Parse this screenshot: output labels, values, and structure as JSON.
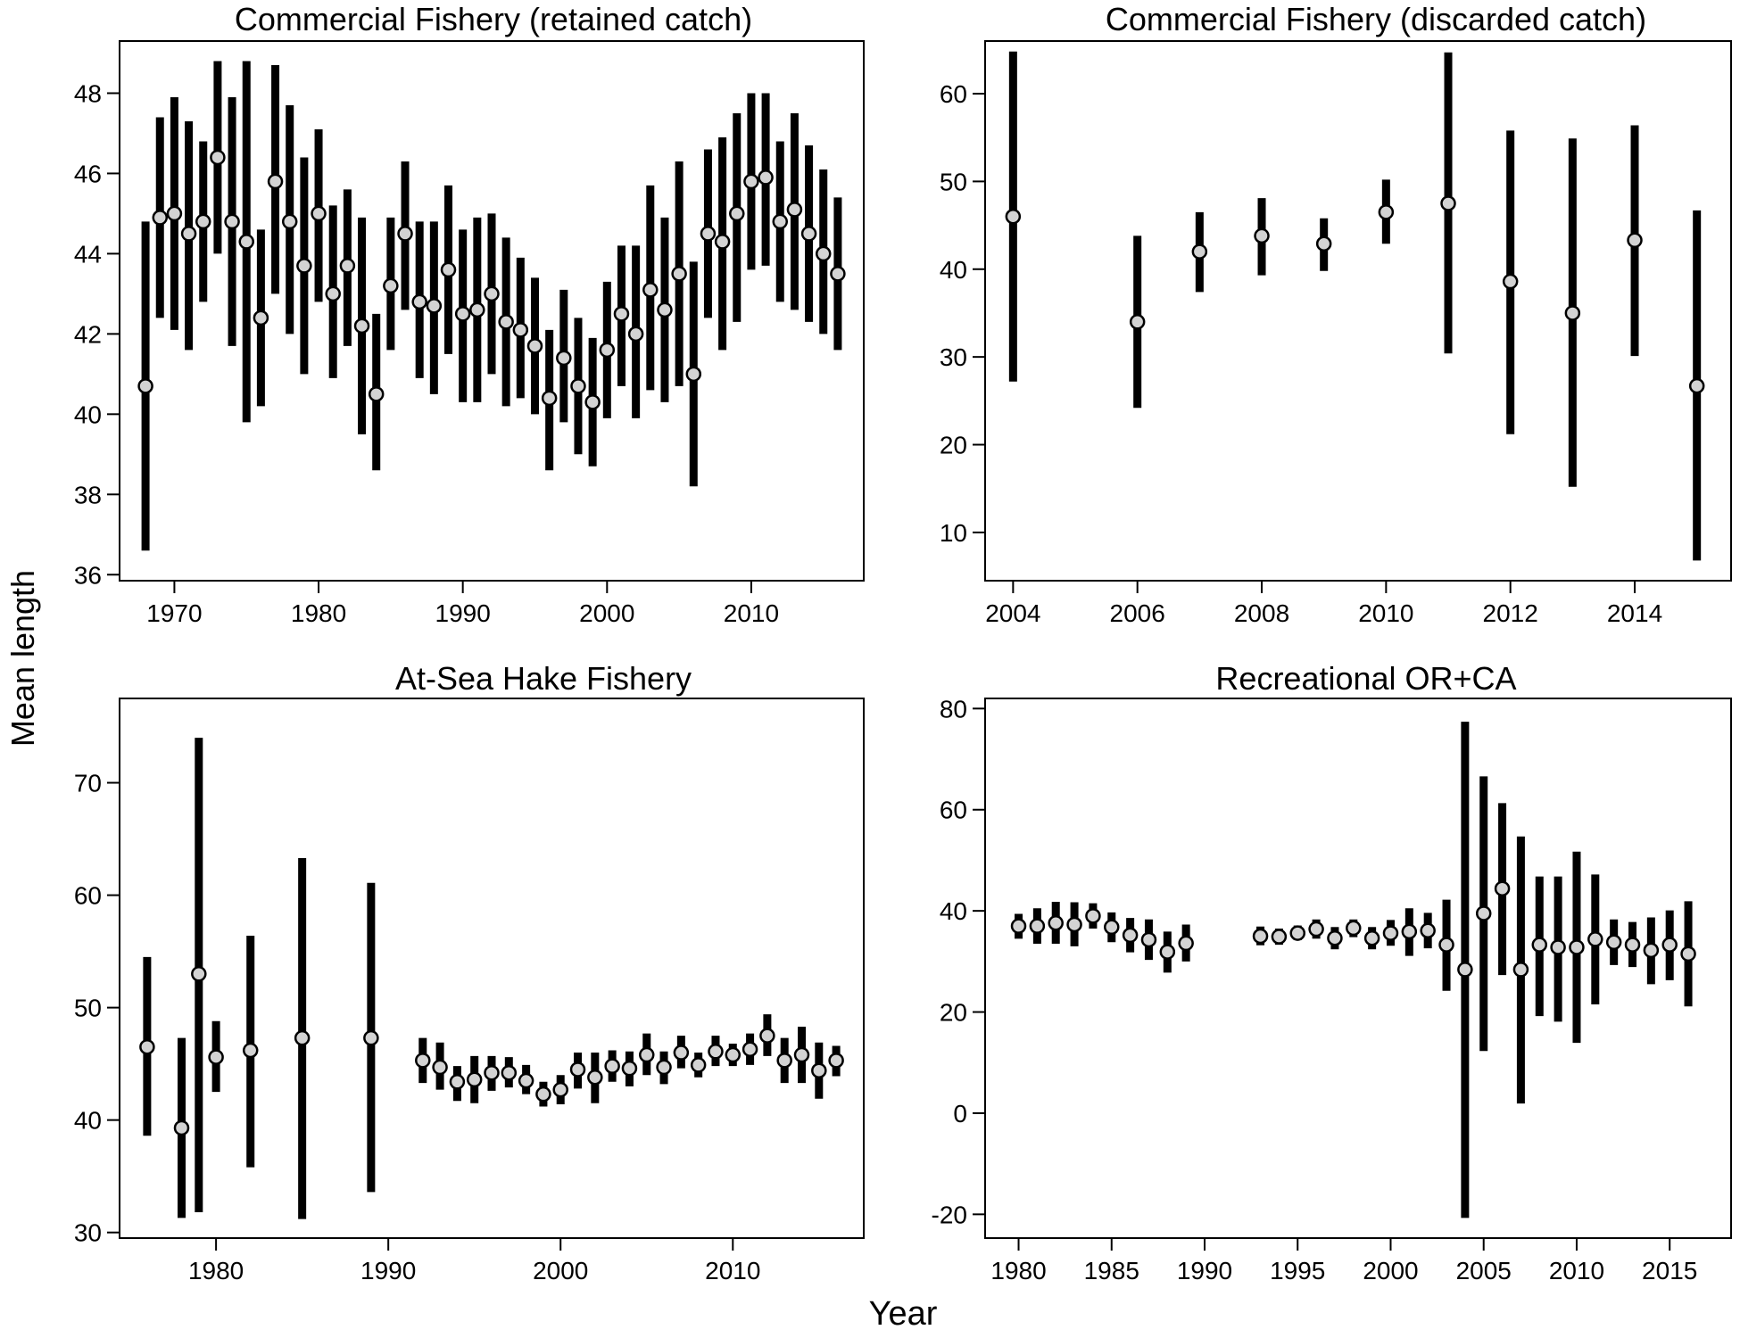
{
  "figure": {
    "ylabel": "Mean length",
    "xlabel": "Year"
  },
  "style": {
    "bar_color": "#000000",
    "point_fill": "#d3d3d3",
    "point_stroke": "#000000",
    "frame_color": "#000000"
  },
  "chart_data": [
    {
      "type": "errorbar",
      "id": "retained",
      "title": "Commercial Fishery (retained catch)",
      "xlim": [
        1966.2,
        2017.8
      ],
      "ylim": [
        35.85,
        49.3
      ],
      "xticks": [
        1970,
        1980,
        1990,
        2000,
        2010
      ],
      "xtick_labels": [
        "1970",
        "1980",
        "1990",
        "2000",
        "2010"
      ],
      "yticks": [
        36,
        38,
        40,
        42,
        44,
        46,
        48
      ],
      "ytick_labels": [
        "36",
        "38",
        "40",
        "42",
        "44",
        "46",
        "48"
      ],
      "x": [
        1968,
        1969,
        1970,
        1971,
        1972,
        1973,
        1974,
        1975,
        1976,
        1977,
        1978,
        1979,
        1980,
        1981,
        1982,
        1983,
        1984,
        1985,
        1986,
        1987,
        1988,
        1989,
        1990,
        1991,
        1992,
        1993,
        1994,
        1995,
        1996,
        1997,
        1998,
        1999,
        2000,
        2001,
        2002,
        2003,
        2004,
        2005,
        2006,
        2007,
        2008,
        2009,
        2010,
        2011,
        2012,
        2013,
        2014,
        2015,
        2016
      ],
      "y": [
        40.7,
        44.9,
        45.0,
        44.5,
        44.8,
        46.4,
        44.8,
        44.3,
        42.4,
        45.8,
        44.8,
        43.7,
        45.0,
        43.0,
        43.7,
        42.2,
        40.5,
        43.2,
        44.5,
        42.8,
        42.7,
        43.6,
        42.5,
        42.6,
        43.0,
        42.3,
        42.1,
        41.7,
        40.4,
        41.4,
        40.7,
        40.3,
        41.6,
        42.5,
        42.0,
        43.1,
        42.6,
        43.5,
        41.0,
        44.5,
        44.3,
        45.0,
        45.8,
        45.9,
        44.8,
        45.1,
        44.5,
        44.0,
        43.5
      ],
      "low": [
        36.6,
        42.4,
        42.1,
        41.6,
        42.8,
        44.0,
        41.7,
        39.8,
        40.2,
        43.0,
        42.0,
        41.0,
        42.8,
        40.9,
        41.7,
        39.5,
        38.6,
        41.6,
        42.6,
        40.9,
        40.5,
        41.5,
        40.3,
        40.3,
        41.0,
        40.2,
        40.4,
        40.0,
        38.6,
        39.8,
        39.0,
        38.7,
        39.9,
        40.7,
        39.9,
        40.6,
        40.3,
        40.7,
        38.2,
        42.4,
        41.6,
        42.3,
        43.6,
        43.7,
        42.8,
        42.6,
        42.3,
        42.0,
        41.6
      ],
      "high": [
        44.8,
        47.4,
        47.9,
        47.3,
        46.8,
        48.8,
        47.9,
        48.8,
        44.6,
        48.7,
        47.7,
        46.4,
        47.1,
        45.2,
        45.6,
        44.9,
        42.5,
        44.9,
        46.3,
        44.8,
        44.8,
        45.7,
        44.6,
        44.9,
        45.0,
        44.4,
        43.9,
        43.4,
        42.1,
        43.1,
        42.4,
        41.9,
        43.3,
        44.2,
        44.2,
        45.7,
        44.9,
        46.3,
        43.8,
        46.6,
        46.9,
        47.5,
        48.0,
        48.0,
        46.8,
        47.5,
        46.7,
        46.1,
        45.4
      ]
    },
    {
      "type": "errorbar",
      "id": "discarded",
      "title": "Commercial Fishery (discarded catch)",
      "xlim": [
        2003.55,
        2015.55
      ],
      "ylim": [
        4.5,
        66.0
      ],
      "xticks": [
        2004,
        2006,
        2008,
        2010,
        2012,
        2014
      ],
      "xtick_labels": [
        "2004",
        "2006",
        "2008",
        "2010",
        "2012",
        "2014"
      ],
      "yticks": [
        10,
        20,
        30,
        40,
        50,
        60
      ],
      "ytick_labels": [
        "10",
        "20",
        "30",
        "40",
        "50",
        "60"
      ],
      "x": [
        2004,
        2006,
        2007,
        2008,
        2009,
        2010,
        2011,
        2012,
        2013,
        2014,
        2015
      ],
      "y": [
        46.0,
        34.0,
        42.0,
        43.8,
        42.9,
        46.5,
        47.5,
        38.6,
        35.0,
        43.3,
        26.7
      ],
      "low": [
        27.2,
        24.2,
        37.4,
        39.3,
        39.8,
        42.9,
        30.4,
        21.2,
        15.2,
        30.1,
        6.8
      ],
      "high": [
        64.8,
        43.8,
        46.5,
        48.1,
        45.8,
        50.2,
        64.7,
        55.8,
        54.9,
        56.4,
        46.7
      ]
    },
    {
      "type": "errorbar",
      "id": "atsea",
      "title": "At-Sea Hake Fishery",
      "xlim": [
        1974.4,
        2017.6
      ],
      "ylim": [
        29.5,
        77.5
      ],
      "xticks": [
        1980,
        1990,
        2000,
        2010
      ],
      "xtick_labels": [
        "1980",
        "1990",
        "2000",
        "2010"
      ],
      "yticks": [
        30,
        40,
        50,
        60,
        70
      ],
      "ytick_labels": [
        "30",
        "40",
        "50",
        "60",
        "70"
      ],
      "x": [
        1976,
        1978,
        1979,
        1980,
        1982,
        1985,
        1989,
        1992,
        1993,
        1994,
        1995,
        1996,
        1997,
        1998,
        1999,
        2000,
        2001,
        2002,
        2003,
        2004,
        2005,
        2006,
        2007,
        2008,
        2009,
        2010,
        2011,
        2012,
        2013,
        2014,
        2015,
        2016
      ],
      "y": [
        46.5,
        39.3,
        53.0,
        45.6,
        46.2,
        47.3,
        47.3,
        45.3,
        44.7,
        43.4,
        43.6,
        44.2,
        44.2,
        43.5,
        42.3,
        42.7,
        44.5,
        43.8,
        44.8,
        44.6,
        45.8,
        44.7,
        46.0,
        44.9,
        46.1,
        45.8,
        46.3,
        47.5,
        45.3,
        45.8,
        44.4,
        45.3
      ],
      "low": [
        38.6,
        31.3,
        31.8,
        42.5,
        35.8,
        31.2,
        33.6,
        43.3,
        42.7,
        41.7,
        41.5,
        42.6,
        42.9,
        42.3,
        41.2,
        41.4,
        42.8,
        41.5,
        43.4,
        43.0,
        44.0,
        43.2,
        44.6,
        43.8,
        44.8,
        44.8,
        44.9,
        45.7,
        43.3,
        43.3,
        41.9,
        43.9
      ],
      "high": [
        54.5,
        47.3,
        74.0,
        48.8,
        56.4,
        63.3,
        61.1,
        47.3,
        46.9,
        44.8,
        45.7,
        45.7,
        45.6,
        44.9,
        43.4,
        44.0,
        46.0,
        46.0,
        46.2,
        46.1,
        47.7,
        46.1,
        47.5,
        46.0,
        47.5,
        46.8,
        47.7,
        49.4,
        47.3,
        48.3,
        46.9,
        46.6
      ]
    },
    {
      "type": "errorbar",
      "id": "recreational",
      "title": "Recreational OR+CA",
      "xlim": [
        1978.2,
        2018.3
      ],
      "ylim": [
        -24.7,
        82.0
      ],
      "xticks": [
        1980,
        1985,
        1990,
        1995,
        2000,
        2005,
        2010,
        2015
      ],
      "xtick_labels": [
        "1980",
        "1985",
        "1990",
        "1995",
        "2000",
        "2005",
        "2010",
        "2015"
      ],
      "yticks": [
        -20,
        0,
        20,
        40,
        60,
        80
      ],
      "ytick_labels": [
        "-20",
        "0",
        "20",
        "40",
        "60",
        "80"
      ],
      "x": [
        1980,
        1981,
        1982,
        1983,
        1984,
        1985,
        1986,
        1987,
        1988,
        1989,
        1993,
        1994,
        1995,
        1996,
        1997,
        1998,
        1999,
        2000,
        2001,
        2002,
        2003,
        2004,
        2005,
        2006,
        2007,
        2008,
        2009,
        2010,
        2011,
        2012,
        2013,
        2014,
        2015,
        2016
      ],
      "y": [
        37.0,
        37.0,
        37.6,
        37.3,
        39.0,
        36.8,
        35.2,
        34.3,
        31.9,
        33.6,
        35.0,
        34.9,
        35.6,
        36.4,
        34.6,
        36.6,
        34.6,
        35.6,
        35.9,
        36.1,
        33.3,
        28.4,
        39.5,
        44.4,
        28.4,
        33.3,
        32.8,
        32.8,
        34.4,
        33.8,
        33.3,
        32.2,
        33.3,
        31.5
      ],
      "low": [
        34.5,
        33.5,
        33.5,
        33.0,
        36.5,
        33.8,
        31.8,
        30.3,
        27.8,
        30.0,
        33.2,
        33.3,
        34.2,
        34.5,
        32.4,
        34.8,
        32.4,
        33.1,
        31.1,
        32.6,
        24.2,
        -20.7,
        12.3,
        27.3,
        1.9,
        19.2,
        18.1,
        13.9,
        21.5,
        29.3,
        28.9,
        25.5,
        26.3,
        21.1
      ],
      "high": [
        39.4,
        40.5,
        41.8,
        41.7,
        41.5,
        39.7,
        38.6,
        38.3,
        35.9,
        37.3,
        36.9,
        36.5,
        37.1,
        38.3,
        36.8,
        38.3,
        36.8,
        38.2,
        40.5,
        39.6,
        42.2,
        77.4,
        66.6,
        61.3,
        54.7,
        46.8,
        46.8,
        51.7,
        47.2,
        38.3,
        37.8,
        38.7,
        40.1,
        41.9
      ]
    }
  ]
}
